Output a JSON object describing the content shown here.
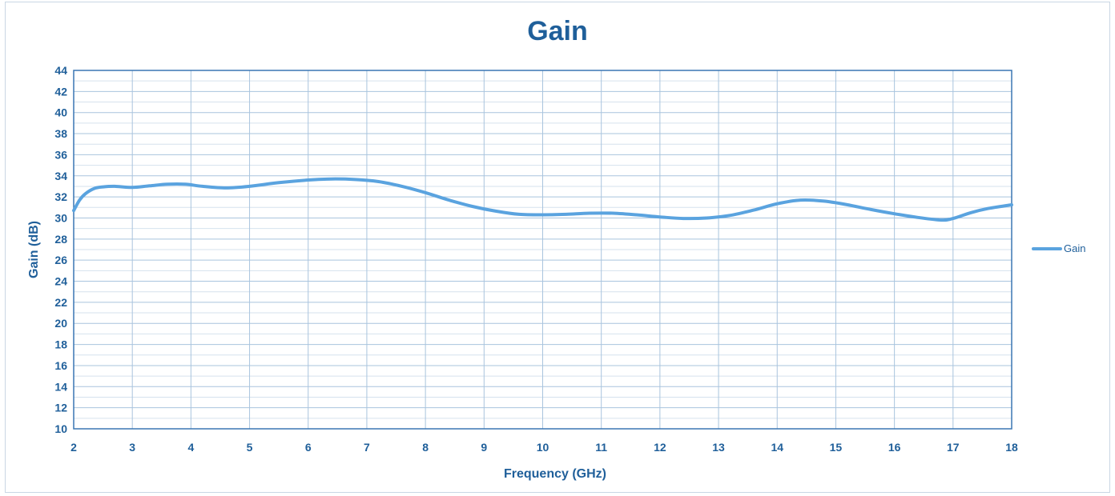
{
  "chart_data": {
    "type": "line",
    "title": "Gain",
    "xlabel": "Frequency (GHz)",
    "ylabel": "Gain (dB)",
    "xlim": [
      2,
      18
    ],
    "ylim": [
      10,
      44
    ],
    "xticks": [
      2,
      3,
      4,
      5,
      6,
      7,
      8,
      9,
      10,
      11,
      12,
      13,
      14,
      15,
      16,
      17,
      18
    ],
    "yticks": [
      10,
      12,
      14,
      16,
      18,
      20,
      22,
      24,
      26,
      28,
      30,
      32,
      34,
      36,
      38,
      40,
      42,
      44
    ],
    "grid": true,
    "legend": {
      "position": "right",
      "entries": [
        "Gain"
      ]
    },
    "series": [
      {
        "name": "Gain",
        "color": "#5aa3df",
        "x": [
          2.0,
          2.1,
          2.2,
          2.35,
          2.5,
          2.7,
          3.0,
          3.3,
          3.6,
          3.9,
          4.2,
          4.6,
          5.0,
          5.5,
          6.0,
          6.4,
          6.8,
          7.2,
          7.6,
          8.0,
          8.4,
          8.8,
          9.2,
          9.6,
          10.0,
          10.4,
          10.8,
          11.2,
          11.6,
          12.0,
          12.4,
          12.8,
          13.2,
          13.6,
          14.0,
          14.4,
          14.8,
          15.2,
          15.6,
          16.0,
          16.4,
          16.8,
          17.0,
          17.3,
          17.6,
          18.0
        ],
        "y": [
          30.7,
          31.7,
          32.3,
          32.8,
          32.95,
          33.0,
          32.9,
          33.05,
          33.2,
          33.2,
          33.0,
          32.85,
          33.0,
          33.35,
          33.6,
          33.7,
          33.65,
          33.45,
          33.0,
          32.4,
          31.7,
          31.1,
          30.65,
          30.35,
          30.3,
          30.35,
          30.45,
          30.45,
          30.3,
          30.1,
          29.95,
          30.0,
          30.25,
          30.75,
          31.35,
          31.7,
          31.6,
          31.25,
          30.8,
          30.4,
          30.05,
          29.8,
          29.95,
          30.5,
          30.9,
          31.25
        ]
      }
    ]
  }
}
